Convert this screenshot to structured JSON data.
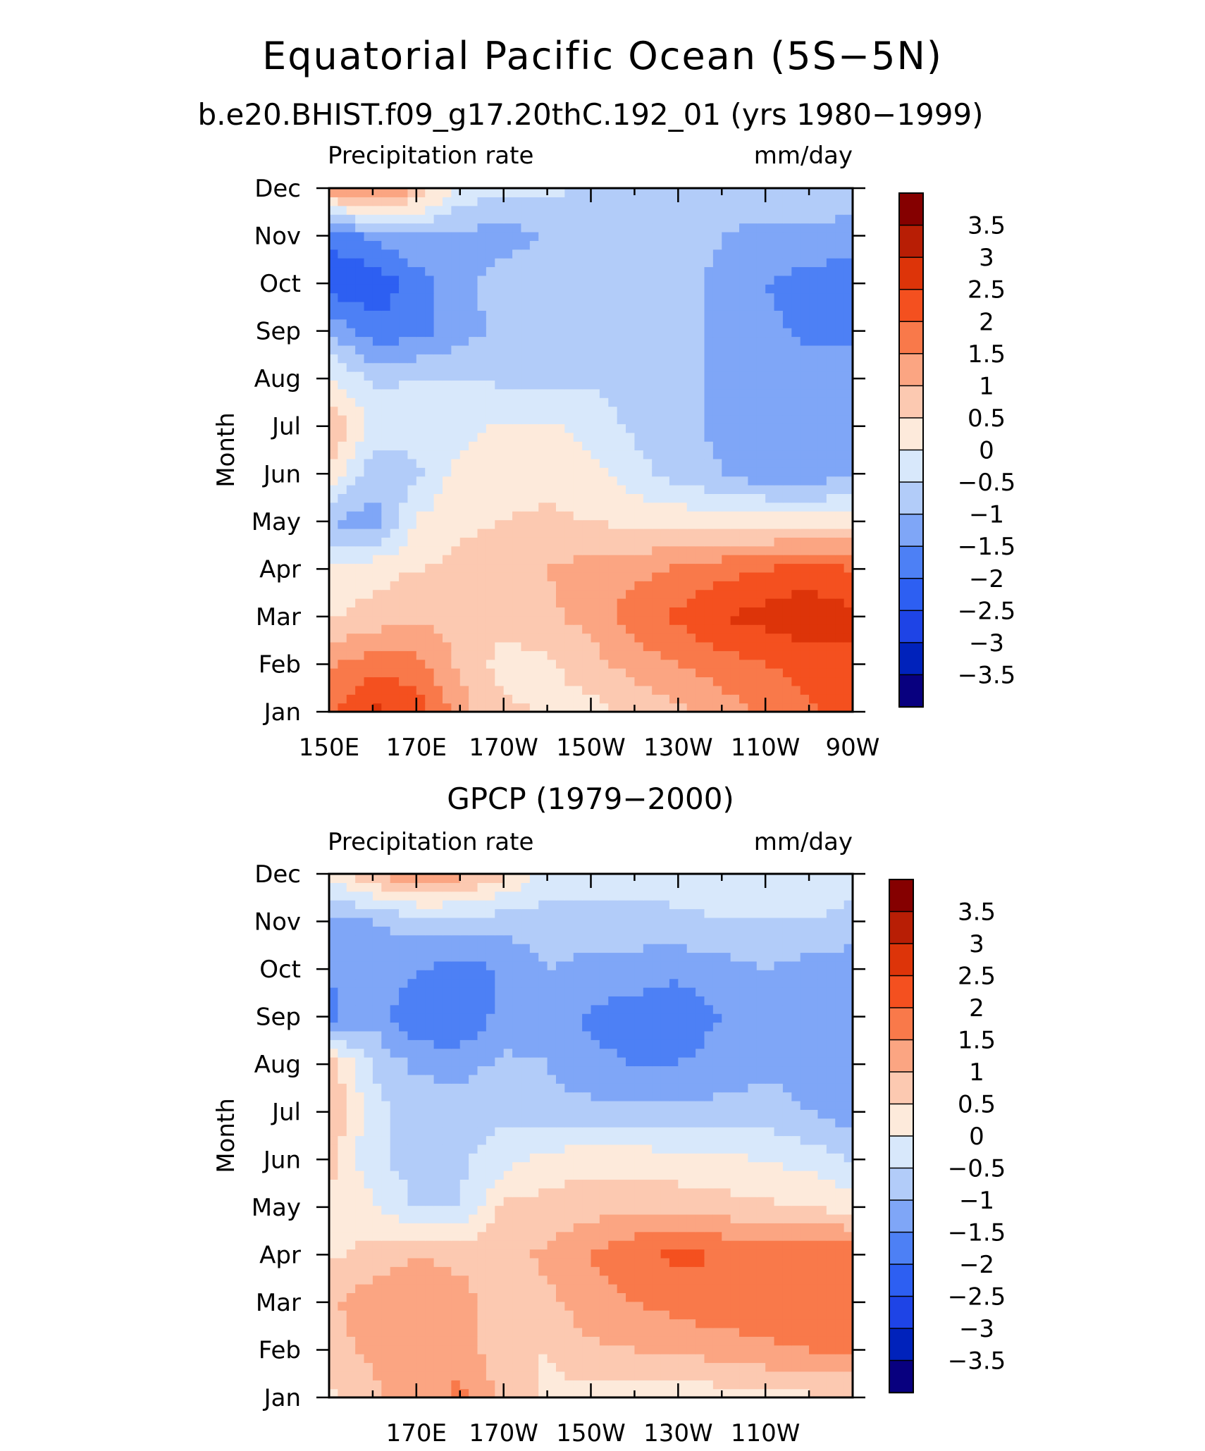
{
  "figure": {
    "title": "Equatorial Pacific Ocean (5S−5N)"
  },
  "palette": {
    "levels": [
      -3.5,
      -3,
      -2.5,
      -2,
      -1.5,
      -1,
      -0.5,
      0,
      0.5,
      1,
      1.5,
      2,
      2.5,
      3,
      3.5
    ],
    "colors": [
      "#08007f",
      "#0022bb",
      "#1e44e6",
      "#2d5ff2",
      "#4d80f5",
      "#7fa6f7",
      "#b2ccf9",
      "#d8e8fb",
      "#fdeadb",
      "#fcc9b1",
      "#fba582",
      "#f9794a",
      "#f4501f",
      "#dd3409",
      "#b81e05",
      "#850000"
    ],
    "colorbar_labels": [
      "3.5",
      "3",
      "2.5",
      "2",
      "1.5",
      "1",
      "0.5",
      "0",
      "−0.5",
      "−1",
      "−1.5",
      "−2",
      "−2.5",
      "−3",
      "−3.5"
    ]
  },
  "chart_data": [
    {
      "type": "heatmap",
      "title": "b.e20.BHIST.f09_g17.20thC.192_01 (yrs 1980−1999)",
      "left_label": "Precipitation rate",
      "right_label": "mm/day",
      "ylabel": "Month",
      "x": [
        150,
        160,
        170,
        180,
        190,
        200,
        210,
        220,
        230,
        240,
        250,
        260,
        270
      ],
      "x_units": "degrees east",
      "xlim": [
        150,
        270
      ],
      "x_tick_labels": [
        "150E",
        "170E",
        "170W",
        "150W",
        "130W",
        "110W",
        "90W"
      ],
      "y_tick_labels": [
        "Jan",
        "Feb",
        "Mar",
        "Apr",
        "May",
        "Jun",
        "Jul",
        "Aug",
        "Sep",
        "Oct",
        "Nov",
        "Dec"
      ],
      "values": [
        [
          1.9,
          2.6,
          2.4,
          1.2,
          0.6,
          0.45,
          0.3,
          0.6,
          0.9,
          1.2,
          1.6,
          1.9,
          2.2
        ],
        [
          1.4,
          1.8,
          1.7,
          0.9,
          0.3,
          0.4,
          0.8,
          1.2,
          1.5,
          1.8,
          2.0,
          2.2,
          2.4
        ],
        [
          0.4,
          0.7,
          0.9,
          0.8,
          0.7,
          0.9,
          1.2,
          1.8,
          2.1,
          2.5,
          2.7,
          2.9,
          2.6
        ],
        [
          0.2,
          0.3,
          0.5,
          0.6,
          0.9,
          1.0,
          1.2,
          1.3,
          1.6,
          1.8,
          2.0,
          2.2,
          2.0
        ],
        [
          -1.0,
          -1.3,
          0.05,
          0.4,
          0.5,
          0.6,
          0.5,
          0.4,
          0.35,
          0.3,
          0.25,
          0.2,
          0.3
        ],
        [
          0.3,
          -0.8,
          -0.6,
          0.2,
          0.3,
          0.35,
          0.2,
          -0.3,
          -0.7,
          -1.0,
          -1.3,
          -1.4,
          -1.0
        ],
        [
          1.1,
          -0.2,
          -0.3,
          -0.2,
          0.1,
          0.1,
          -0.2,
          -0.6,
          -0.9,
          -1.1,
          -1.2,
          -1.3,
          -1.1
        ],
        [
          0.1,
          -0.6,
          -0.5,
          -0.5,
          -0.6,
          -0.7,
          -0.6,
          -0.7,
          -0.9,
          -1.1,
          -1.2,
          -1.3,
          -1.3
        ],
        [
          -1.1,
          -1.8,
          -1.7,
          -1.2,
          -0.9,
          -0.8,
          -0.8,
          -0.8,
          -0.9,
          -1.1,
          -1.4,
          -1.6,
          -1.6
        ],
        [
          -2.3,
          -2.4,
          -1.8,
          -1.2,
          -0.7,
          -0.6,
          -0.7,
          -0.8,
          -0.9,
          -1.1,
          -1.5,
          -1.7,
          -1.7
        ],
        [
          -1.9,
          -1.4,
          -1.0,
          -1.1,
          -1.3,
          -0.9,
          -0.7,
          -0.7,
          -0.8,
          -1.0,
          -1.1,
          -1.2,
          -1.3
        ],
        [
          1.3,
          1.8,
          1.0,
          -0.2,
          -0.3,
          -0.4,
          -0.6,
          -0.8,
          -0.9,
          -0.9,
          -0.7,
          -0.6,
          -0.5
        ]
      ],
      "ylim": [
        1,
        12
      ]
    },
    {
      "type": "heatmap",
      "title": "GPCP (1979−2000)",
      "left_label": "Precipitation rate",
      "right_label": "mm/day",
      "ylabel": "Month",
      "x": [
        150,
        160,
        170,
        180,
        190,
        200,
        210,
        220,
        230,
        240,
        250,
        260,
        270
      ],
      "x_units": "degrees east",
      "xlim": [
        150,
        270
      ],
      "x_tick_labels": [
        "170E",
        "170W",
        "150W",
        "130W",
        "110W"
      ],
      "y_tick_labels": [
        "Jan",
        "Feb",
        "Mar",
        "Apr",
        "May",
        "Jun",
        "Jul",
        "Aug",
        "Sep",
        "Oct",
        "Nov",
        "Dec"
      ],
      "values": [
        [
          0.4,
          0.9,
          1.3,
          1.6,
          0.9,
          0.4,
          0.3,
          0.3,
          0.2,
          0.25,
          0.3,
          0.4,
          0.5
        ],
        [
          0.8,
          1.1,
          1.2,
          1.4,
          0.5,
          0.5,
          0.9,
          1.0,
          1.1,
          1.2,
          1.4,
          1.5,
          1.6
        ],
        [
          0.9,
          1.3,
          1.4,
          1.3,
          0.5,
          0.9,
          1.3,
          1.5,
          1.7,
          1.9,
          1.8,
          1.9,
          1.8
        ],
        [
          0.4,
          0.7,
          1.0,
          0.8,
          0.9,
          1.1,
          1.5,
          1.9,
          2.1,
          2.0,
          1.8,
          2.0,
          1.9
        ],
        [
          0.4,
          0.1,
          -0.6,
          -0.5,
          0.6,
          0.7,
          0.8,
          0.9,
          0.8,
          0.7,
          0.6,
          0.5,
          0.3
        ],
        [
          0.7,
          -0.4,
          -0.7,
          -0.6,
          -0.2,
          0.2,
          0.3,
          0.3,
          0.2,
          0.1,
          0.0,
          -0.2,
          -0.5
        ],
        [
          1.0,
          -0.3,
          -0.7,
          -0.7,
          -0.6,
          -0.8,
          -0.8,
          -0.9,
          -0.9,
          -0.8,
          -0.8,
          -1.0,
          -1.3
        ],
        [
          0.9,
          -0.6,
          -1.1,
          -1.2,
          -0.9,
          -1.0,
          -1.4,
          -1.5,
          -1.5,
          -1.3,
          -1.1,
          -1.2,
          -1.3
        ],
        [
          -1.7,
          -1.1,
          -2.0,
          -2.0,
          -1.3,
          -1.1,
          -1.6,
          -1.7,
          -1.8,
          -1.5,
          -1.0,
          -1.3,
          -1.4
        ],
        [
          -1.4,
          -1.3,
          -1.4,
          -1.8,
          -1.4,
          -1.0,
          -1.2,
          -1.3,
          -1.4,
          -1.2,
          -1.0,
          -1.2,
          -1.4
        ],
        [
          -1.2,
          -1.0,
          -0.8,
          -0.7,
          -0.8,
          -0.7,
          -0.6,
          -0.6,
          -0.6,
          -0.5,
          -0.5,
          -0.5,
          -0.6
        ],
        [
          0.2,
          0.9,
          1.5,
          1.2,
          0.6,
          -0.3,
          -0.4,
          -0.4,
          -0.3,
          -0.3,
          -0.3,
          -0.3,
          -0.4
        ]
      ],
      "ylim": [
        1,
        12
      ]
    }
  ]
}
